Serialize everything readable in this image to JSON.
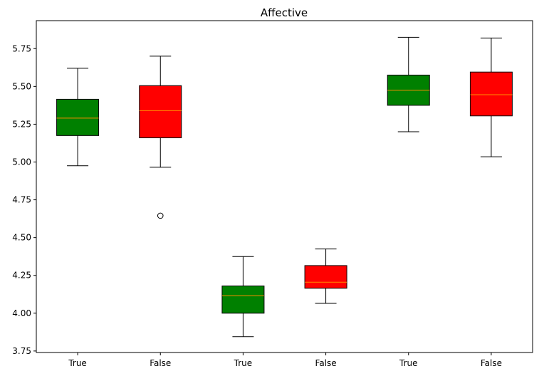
{
  "chart_data": {
    "type": "boxplot",
    "title": "Affective",
    "xlabel": "",
    "ylabel": "",
    "ylim": [
      3.74,
      5.935
    ],
    "yticks": [
      3.75,
      4.0,
      4.25,
      4.5,
      4.75,
      5.0,
      5.25,
      5.5,
      5.75
    ],
    "ytick_labels": [
      "3.75",
      "4.00",
      "4.25",
      "4.50",
      "4.75",
      "5.00",
      "5.25",
      "5.50",
      "5.75"
    ],
    "grid": false,
    "categories": [
      "True",
      "False",
      "True",
      "False",
      "True",
      "False"
    ],
    "boxes": [
      {
        "label": "True",
        "whisker_low": 4.975,
        "q1": 5.175,
        "median": 5.29,
        "q3": 5.415,
        "whisker_high": 5.62,
        "outliers": [],
        "color": "#008000"
      },
      {
        "label": "False",
        "whisker_low": 4.965,
        "q1": 5.16,
        "median": 5.34,
        "q3": 5.505,
        "whisker_high": 5.7,
        "outliers": [
          4.645
        ],
        "color": "#ff0000"
      },
      {
        "label": "True",
        "whisker_low": 3.845,
        "q1": 4.0,
        "median": 4.115,
        "q3": 4.18,
        "whisker_high": 4.375,
        "outliers": [],
        "color": "#008000"
      },
      {
        "label": "False",
        "whisker_low": 4.065,
        "q1": 4.165,
        "median": 4.205,
        "q3": 4.315,
        "whisker_high": 4.425,
        "outliers": [],
        "color": "#ff0000"
      },
      {
        "label": "True",
        "whisker_low": 5.2,
        "q1": 5.375,
        "median": 5.475,
        "q3": 5.575,
        "whisker_high": 5.825,
        "outliers": [],
        "color": "#008000"
      },
      {
        "label": "False",
        "whisker_low": 5.035,
        "q1": 5.305,
        "median": 5.445,
        "q3": 5.595,
        "whisker_high": 5.82,
        "outliers": [],
        "color": "#ff0000"
      }
    ],
    "median_color": "#ff8c00",
    "line_color": "#000000"
  }
}
